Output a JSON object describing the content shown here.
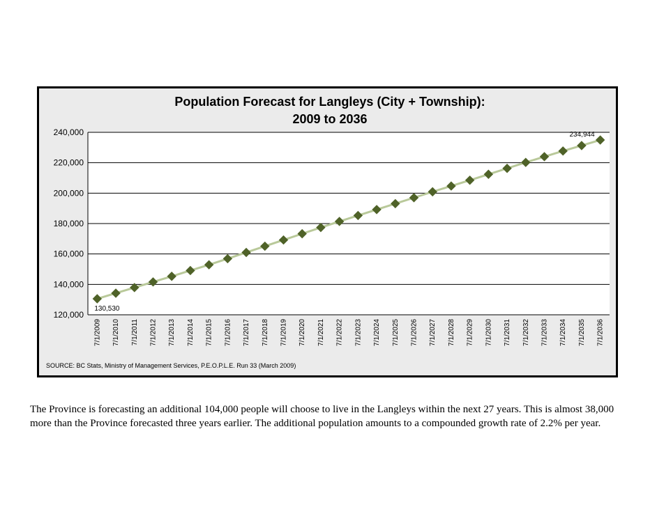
{
  "chart_data": {
    "type": "line",
    "title_line1": "Population Forecast for Langleys (City + Township):",
    "title_line2": "2009 to 2036",
    "xlabel": "",
    "ylabel": "",
    "ylim": [
      120000,
      240000
    ],
    "yticks": [
      "120,000",
      "140,000",
      "160,000",
      "180,000",
      "200,000",
      "220,000",
      "240,000"
    ],
    "ytick_values": [
      120000,
      140000,
      160000,
      180000,
      200000,
      220000,
      240000
    ],
    "grid": true,
    "categories": [
      "7/1/2009",
      "7/1/2010",
      "7/1/2011",
      "7/1/2012",
      "7/1/2013",
      "7/1/2014",
      "7/1/2015",
      "7/1/2016",
      "7/1/2017",
      "7/1/2018",
      "7/1/2019",
      "7/1/2020",
      "7/1/2021",
      "7/1/2022",
      "7/1/2023",
      "7/1/2024",
      "7/1/2025",
      "7/1/2026",
      "7/1/2027",
      "7/1/2028",
      "7/1/2029",
      "7/1/2030",
      "7/1/2031",
      "7/1/2032",
      "7/1/2033",
      "7/1/2034",
      "7/1/2035",
      "7/1/2036"
    ],
    "series": [
      {
        "values": [
          130530,
          134200,
          137900,
          141600,
          145300,
          149100,
          152900,
          156900,
          161000,
          165100,
          169200,
          173300,
          177400,
          181400,
          185300,
          189200,
          193100,
          197000,
          200900,
          204700,
          208500,
          212400,
          216300,
          220200,
          224000,
          227700,
          231300,
          234944
        ],
        "color": "#4f6228",
        "line_color": "#b9c99a"
      }
    ],
    "data_labels": [
      {
        "index": 0,
        "text": "130,530"
      },
      {
        "index": 27,
        "text": "234,944"
      }
    ],
    "source": "SOURCE:  BC Stats, Ministry of Management Services, P.E.O.P.L.E. Run 33 (March 2009)"
  },
  "caption": "The Province is forecasting an additional 104,000 people will choose to live in the Langleys within the next 27 years.  This is almost 38,000 more than the Province forecasted three years earlier.  The additional population amounts to a compounded growth rate of 2.2% per year."
}
